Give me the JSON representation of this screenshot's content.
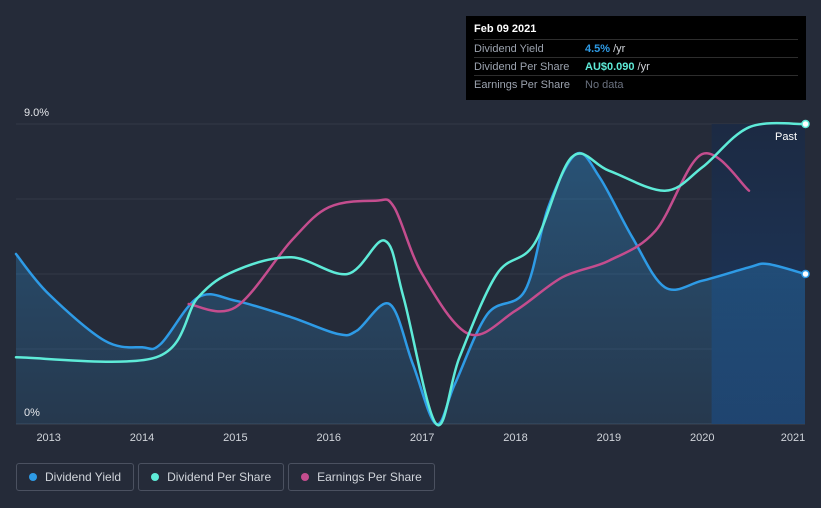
{
  "tooltip": {
    "date": "Feb 09 2021",
    "rows": [
      {
        "label": "Dividend Yield",
        "value": "4.5%",
        "unit": "/yr",
        "color": "#2e9be6"
      },
      {
        "label": "Dividend Per Share",
        "value": "AU$0.090",
        "unit": "/yr",
        "color": "#5eebd8"
      },
      {
        "label": "Earnings Per Share",
        "value": "No data",
        "unit": "",
        "color": "#6b7280"
      }
    ]
  },
  "past_label": "Past",
  "legend": [
    {
      "label": "Dividend Yield",
      "color": "#2e9be6"
    },
    {
      "label": "Dividend Per Share",
      "color": "#5eebd8"
    },
    {
      "label": "Earnings Per Share",
      "color": "#c44d8e"
    }
  ],
  "chart_data": {
    "type": "line",
    "y_axis_labels": [
      "9.0%",
      "0%"
    ],
    "ylim": [
      0,
      9
    ],
    "xlim": [
      2012.65,
      2021.1
    ],
    "x_ticks": [
      "2013",
      "2014",
      "2015",
      "2016",
      "2017",
      "2018",
      "2019",
      "2020",
      "2021"
    ],
    "grid": true,
    "past_region_start": 2020.1,
    "series": [
      {
        "name": "Dividend Yield",
        "color": "#2e9be6",
        "fill": true,
        "points": [
          [
            2012.65,
            5.1
          ],
          [
            2013.0,
            3.9
          ],
          [
            2013.6,
            2.5
          ],
          [
            2014.0,
            2.3
          ],
          [
            2014.2,
            2.4
          ],
          [
            2014.6,
            3.8
          ],
          [
            2015.0,
            3.7
          ],
          [
            2015.6,
            3.2
          ],
          [
            2016.1,
            2.7
          ],
          [
            2016.3,
            2.8
          ],
          [
            2016.65,
            3.6
          ],
          [
            2016.9,
            1.8
          ],
          [
            2017.15,
            0.0
          ],
          [
            2017.35,
            1.2
          ],
          [
            2017.7,
            3.3
          ],
          [
            2018.1,
            4.0
          ],
          [
            2018.35,
            6.5
          ],
          [
            2018.65,
            8.1
          ],
          [
            2018.9,
            7.4
          ],
          [
            2019.25,
            5.6
          ],
          [
            2019.6,
            4.1
          ],
          [
            2020.0,
            4.3
          ],
          [
            2020.5,
            4.7
          ],
          [
            2020.7,
            4.8
          ],
          [
            2021.1,
            4.5
          ]
        ]
      },
      {
        "name": "Dividend Per Share",
        "color": "#5eebd8",
        "fill": false,
        "points": [
          [
            2012.65,
            2.0
          ],
          [
            2014.15,
            2.0
          ],
          [
            2014.6,
            3.8
          ],
          [
            2015.0,
            4.6
          ],
          [
            2015.6,
            5.0
          ],
          [
            2016.2,
            4.5
          ],
          [
            2016.6,
            5.5
          ],
          [
            2016.8,
            3.8
          ],
          [
            2017.15,
            0.0
          ],
          [
            2017.4,
            2.0
          ],
          [
            2017.8,
            4.5
          ],
          [
            2018.2,
            5.4
          ],
          [
            2018.6,
            8.0
          ],
          [
            2019.0,
            7.6
          ],
          [
            2019.6,
            7.0
          ],
          [
            2020.0,
            7.7
          ],
          [
            2020.5,
            8.9
          ],
          [
            2021.1,
            9.0
          ]
        ]
      },
      {
        "name": "Earnings Per Share",
        "color": "#c44d8e",
        "fill": false,
        "points": [
          [
            2014.5,
            3.6
          ],
          [
            2015.0,
            3.5
          ],
          [
            2015.6,
            5.5
          ],
          [
            2016.0,
            6.5
          ],
          [
            2016.5,
            6.7
          ],
          [
            2016.7,
            6.5
          ],
          [
            2017.0,
            4.5
          ],
          [
            2017.5,
            2.7
          ],
          [
            2018.0,
            3.4
          ],
          [
            2018.5,
            4.4
          ],
          [
            2019.0,
            4.9
          ],
          [
            2019.5,
            5.8
          ],
          [
            2020.0,
            8.1
          ],
          [
            2020.5,
            7.0
          ]
        ]
      }
    ]
  }
}
